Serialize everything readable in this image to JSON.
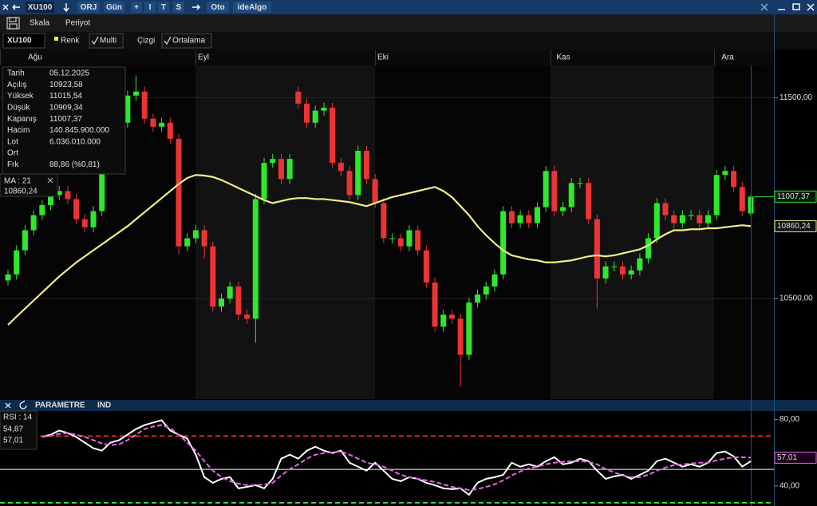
{
  "toolbar": {
    "items": [
      "XU100",
      "ORJ",
      "Gün",
      "+",
      "I",
      "T",
      "S",
      "Oto",
      "ideAlgo"
    ]
  },
  "menu": {
    "items": [
      "Skala",
      "Periyot"
    ]
  },
  "tabs": {
    "symbol": "XU100",
    "items": [
      "Renk",
      "Multi",
      "Çizgi",
      "Ortalama"
    ]
  },
  "info_panel": {
    "rows": [
      {
        "label": "Tarih",
        "value": "05.12.2025"
      },
      {
        "label": "Açılış",
        "value": "10923,58"
      },
      {
        "label": "Yüksek",
        "value": "11015,54"
      },
      {
        "label": "Düşük",
        "value": "10909,34"
      },
      {
        "label": "Kapanış",
        "value": "11007,37"
      },
      {
        "label": "Hacim",
        "value": "140.845.900.000"
      },
      {
        "label": "Lot",
        "value": "6.036.010.000"
      },
      {
        "label": "Ort"
      },
      {
        "label": "Frk",
        "value": "88,86 (%0,81)"
      }
    ]
  },
  "indicator_bar": {
    "items": [
      "PARAMETRE",
      "IND"
    ]
  },
  "chart_data": [
    {
      "type": "candlestick",
      "months": [
        "Ağu",
        "Eyl",
        "Eki",
        "Kas",
        "Ara"
      ],
      "up_color": "#2ee82e",
      "down_color": "#ec3434",
      "open": [
        10590,
        10620,
        10740,
        10840,
        10915,
        10965,
        11015,
        11035,
        10995,
        10895,
        10855,
        10935,
        11155,
        11295,
        11375,
        11510,
        11530,
        11395,
        11355,
        11375,
        11295,
        10760,
        10800,
        10840,
        10760,
        10460,
        10500,
        10560,
        10420,
        10400,
        10995,
        11175,
        11195,
        11095,
        11530,
        11470,
        11375,
        11435,
        11450,
        11175,
        11135,
        11015,
        11235,
        11095,
        10975,
        10800,
        10800,
        10760,
        10840,
        10740,
        10580,
        10360,
        10420,
        10400,
        10220,
        10480,
        10520,
        10560,
        10620,
        10935,
        10875,
        10915,
        10875,
        10955,
        11135,
        10935,
        10955,
        11075,
        11075,
        10895,
        10600,
        10660,
        10660,
        10620,
        10640,
        10700,
        10800,
        10975,
        10915,
        10875,
        10915,
        10915,
        10875,
        10915,
        11115,
        11135,
        11055,
        10923.58
      ],
      "high": [
        10645,
        10765,
        10865,
        10940,
        10990,
        11040,
        11060,
        11060,
        11020,
        10920,
        10960,
        11180,
        11320,
        11400,
        11535,
        11610,
        11555,
        11420,
        11400,
        11400,
        11320,
        10825,
        10865,
        10865,
        10785,
        10525,
        10585,
        10585,
        10445,
        11020,
        11200,
        11220,
        11220,
        11220,
        11555,
        11495,
        11460,
        11475,
        11475,
        11200,
        11160,
        11260,
        11260,
        11120,
        11000,
        10825,
        10825,
        10865,
        10865,
        10765,
        10605,
        10445,
        10445,
        10425,
        10505,
        10545,
        10585,
        10645,
        10960,
        10960,
        10940,
        10940,
        10980,
        11160,
        11160,
        10980,
        11100,
        11100,
        11100,
        10920,
        10685,
        10685,
        10685,
        10665,
        10725,
        10825,
        11000,
        11000,
        10940,
        10940,
        10940,
        10940,
        10940,
        11140,
        11160,
        11160,
        11080,
        11015.54
      ],
      "low": [
        10565,
        10595,
        10715,
        10815,
        10890,
        10940,
        10990,
        10970,
        10870,
        10830,
        10830,
        10910,
        11130,
        11270,
        11350,
        11485,
        11370,
        11330,
        11330,
        11270,
        10720,
        10735,
        10775,
        10700,
        10435,
        10435,
        10475,
        10395,
        10375,
        10280,
        10970,
        11150,
        11070,
        11070,
        11445,
        11350,
        11350,
        11410,
        11150,
        11110,
        10990,
        10990,
        11070,
        10950,
        10775,
        10775,
        10735,
        10735,
        10715,
        10555,
        10335,
        10335,
        10375,
        10060,
        10195,
        10455,
        10495,
        10535,
        10595,
        10850,
        10850,
        10850,
        10850,
        10930,
        10910,
        10910,
        10930,
        11050,
        10870,
        10450,
        10575,
        10635,
        10595,
        10595,
        10615,
        10675,
        10775,
        10890,
        10850,
        10850,
        10890,
        10850,
        10850,
        10890,
        11090,
        11030,
        10910,
        10909.34
      ],
      "close": [
        10620,
        10740,
        10840,
        10915,
        10965,
        11015,
        11035,
        10995,
        10895,
        10855,
        10935,
        11155,
        11295,
        11375,
        11510,
        11530,
        11395,
        11355,
        11375,
        11295,
        10760,
        10800,
        10840,
        10760,
        10460,
        10500,
        10560,
        10420,
        10400,
        10995,
        11175,
        11195,
        11095,
        11195,
        11470,
        11375,
        11435,
        11450,
        11175,
        11135,
        11015,
        11235,
        11095,
        10975,
        10800,
        10800,
        10760,
        10840,
        10740,
        10580,
        10360,
        10420,
        10400,
        10220,
        10480,
        10520,
        10560,
        10620,
        10935,
        10875,
        10915,
        10875,
        10955,
        11135,
        10935,
        10955,
        11075,
        11075,
        10895,
        10600,
        10660,
        10660,
        10620,
        10640,
        10700,
        10800,
        10975,
        10915,
        10875,
        10915,
        10915,
        10875,
        10915,
        11115,
        11135,
        11055,
        10935,
        11007.37
      ],
      "ma": {
        "name": "MA : 21",
        "color": "#f2ee86",
        "values": [
          10369,
          10410,
          10450,
          10490,
          10530,
          10570,
          10610,
          10645,
          10680,
          10710,
          10740,
          10770,
          10800,
          10830,
          10860,
          10895,
          10930,
          10965,
          11000,
          11035,
          11070,
          11100,
          11115,
          11112,
          11105,
          11090,
          11070,
          11050,
          11030,
          11010,
          10990,
          10975,
          10985,
          10995,
          11000,
          11000,
          10995,
          10995,
          10990,
          10985,
          10980,
          10970,
          10960,
          10975,
          10990,
          11005,
          11015,
          11025,
          11035,
          11045,
          11055,
          11035,
          11005,
          10960,
          10915,
          10860,
          10815,
          10775,
          10740,
          10715,
          10705,
          10695,
          10690,
          10680,
          10680,
          10685,
          10690,
          10700,
          10710,
          10715,
          10710,
          10715,
          10725,
          10735,
          10745,
          10765,
          10795,
          10820,
          10840,
          10840,
          10845,
          10845,
          10850,
          10850,
          10855,
          10860,
          10865,
          10860.24
        ],
        "last_label": {
          "value": 10860.24,
          "label": "10860,24"
        }
      },
      "price_tag": {
        "value": 11007.37,
        "label": "11007,37"
      },
      "ylim": [
        10000,
        11660
      ],
      "yticks": [
        {
          "value": 11500,
          "label": "11500,00"
        },
        {
          "value": 10500,
          "label": "10500,00"
        }
      ],
      "grid": true
    },
    {
      "type": "line",
      "series": [
        {
          "name": "RSI : 14",
          "color": "#ffffff",
          "values": [
            null,
            null,
            null,
            null,
            69.4,
            70.8,
            73.3,
            71.8,
            69.4,
            66,
            62.7,
            61.2,
            66,
            67.5,
            70.8,
            74.2,
            76.6,
            78.1,
            79.5,
            73.3,
            70.8,
            68.4,
            58.8,
            45.3,
            41.9,
            44.3,
            45.3,
            38.6,
            39.5,
            40.5,
            38.6,
            44.3,
            56.4,
            58.8,
            56.4,
            61.2,
            63.6,
            61.2,
            59.8,
            61.2,
            54,
            51.6,
            49.2,
            54,
            49.2,
            44.3,
            42.9,
            45.3,
            44.3,
            41.9,
            40.5,
            38.6,
            38.1,
            38.6,
            34.7,
            41.9,
            44.3,
            45.3,
            46.7,
            54,
            51.6,
            53,
            51.6,
            54.9,
            57.3,
            53,
            54,
            56.4,
            54.9,
            49.2,
            44.3,
            45.8,
            46.7,
            44.3,
            46.7,
            49.2,
            54.9,
            56.4,
            54,
            51.6,
            53,
            51.6,
            54,
            59.8,
            60.7,
            57.8,
            51.6,
            54.87
          ],
          "last_label": {
            "value": 54.87,
            "label": "54,87"
          }
        },
        {
          "color": "#e467e4",
          "dash": true,
          "values": [
            null,
            null,
            null,
            null,
            69.4,
            70.4,
            71.3,
            71.8,
            70.8,
            69.4,
            67.5,
            65.5,
            64.6,
            65,
            67.5,
            70.8,
            74.2,
            75.7,
            76.6,
            74.7,
            70.8,
            66,
            61.2,
            54.9,
            49.2,
            45.3,
            42.9,
            41.4,
            40.5,
            40.5,
            40.9,
            41.9,
            46.3,
            50.1,
            53,
            56.4,
            58.8,
            59.8,
            60.2,
            60.7,
            58.8,
            56.4,
            54,
            53,
            51.6,
            49.2,
            46.7,
            45.3,
            44.3,
            43.4,
            42.4,
            41,
            39.5,
            38.6,
            37.6,
            38.1,
            39.5,
            41,
            43.4,
            46.3,
            48.7,
            50.6,
            51.6,
            53,
            54,
            54.5,
            54.9,
            54.9,
            54.5,
            53,
            50.1,
            48.2,
            46.3,
            45.3,
            45.3,
            46.7,
            49.2,
            51.1,
            52.5,
            53,
            53.5,
            54,
            54,
            55.4,
            56.4,
            57.3,
            57.3,
            57.01
          ],
          "last_label": {
            "value": 57.01,
            "label": "57,01"
          }
        }
      ],
      "levels": [
        {
          "value": 70,
          "color": "#e02424",
          "dash": true
        },
        {
          "value": 50,
          "color": "#ffffff"
        },
        {
          "value": 30,
          "color": "#3ee03e",
          "dash": true
        }
      ],
      "ylim": [
        28,
        85
      ],
      "yticks": [
        {
          "value": 80,
          "label": "80,00"
        },
        {
          "value": 40,
          "label": "40,00"
        }
      ]
    }
  ]
}
